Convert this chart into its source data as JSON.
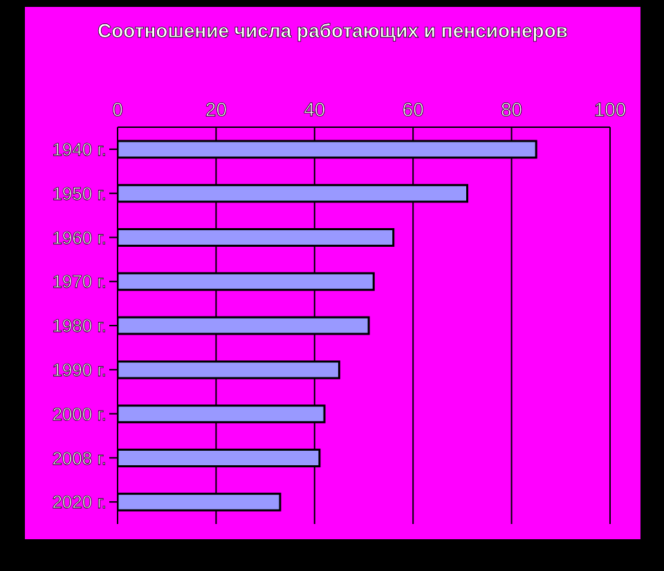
{
  "chart_data": {
    "type": "bar",
    "orientation": "horizontal",
    "title": "Соотношение числа работающих и пенсионеров",
    "categories": [
      "1940 г.",
      "1950 г.",
      "1960 г.",
      "1970 г.",
      "1980 г.",
      "1990 г.",
      "2000 г.",
      "2008 г.",
      "2020 г."
    ],
    "values": [
      85,
      71,
      56,
      52,
      51,
      45,
      42,
      41,
      33
    ],
    "color": "#9999ff",
    "xlim": [
      0,
      100
    ],
    "xticks": [
      0,
      20,
      40,
      60,
      80,
      100
    ],
    "grid": "x",
    "legend": false
  }
}
